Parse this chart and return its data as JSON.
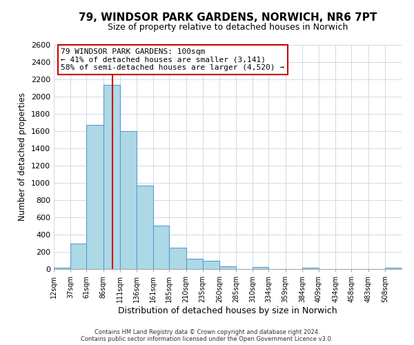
{
  "title": "79, WINDSOR PARK GARDENS, NORWICH, NR6 7PT",
  "subtitle": "Size of property relative to detached houses in Norwich",
  "xlabel": "Distribution of detached houses by size in Norwich",
  "ylabel": "Number of detached properties",
  "bin_labels": [
    "12sqm",
    "37sqm",
    "61sqm",
    "86sqm",
    "111sqm",
    "136sqm",
    "161sqm",
    "185sqm",
    "210sqm",
    "235sqm",
    "260sqm",
    "285sqm",
    "310sqm",
    "334sqm",
    "359sqm",
    "384sqm",
    "409sqm",
    "434sqm",
    "458sqm",
    "483sqm",
    "508sqm"
  ],
  "bin_edges": [
    12,
    37,
    61,
    86,
    111,
    136,
    161,
    185,
    210,
    235,
    260,
    285,
    310,
    334,
    359,
    384,
    409,
    434,
    458,
    483,
    508
  ],
  "bar_heights": [
    20,
    295,
    1670,
    2140,
    1600,
    965,
    505,
    250,
    120,
    95,
    35,
    0,
    25,
    0,
    0,
    15,
    0,
    0,
    0,
    0,
    20
  ],
  "bar_color": "#add8e6",
  "bar_edge_color": "#5b9bd5",
  "property_line_x": 100,
  "property_line_color": "#cc0000",
  "annotation_text": "79 WINDSOR PARK GARDENS: 100sqm\n← 41% of detached houses are smaller (3,141)\n58% of semi-detached houses are larger (4,520) →",
  "annotation_box_color": "#ffffff",
  "annotation_box_edge": "#cc0000",
  "ylim": [
    0,
    2600
  ],
  "yticks": [
    0,
    200,
    400,
    600,
    800,
    1000,
    1200,
    1400,
    1600,
    1800,
    2000,
    2200,
    2400,
    2600
  ],
  "footer_line1": "Contains HM Land Registry data © Crown copyright and database right 2024.",
  "footer_line2": "Contains public sector information licensed under the Open Government Licence v3.0.",
  "background_color": "#ffffff",
  "grid_color": "#d0d8e8"
}
